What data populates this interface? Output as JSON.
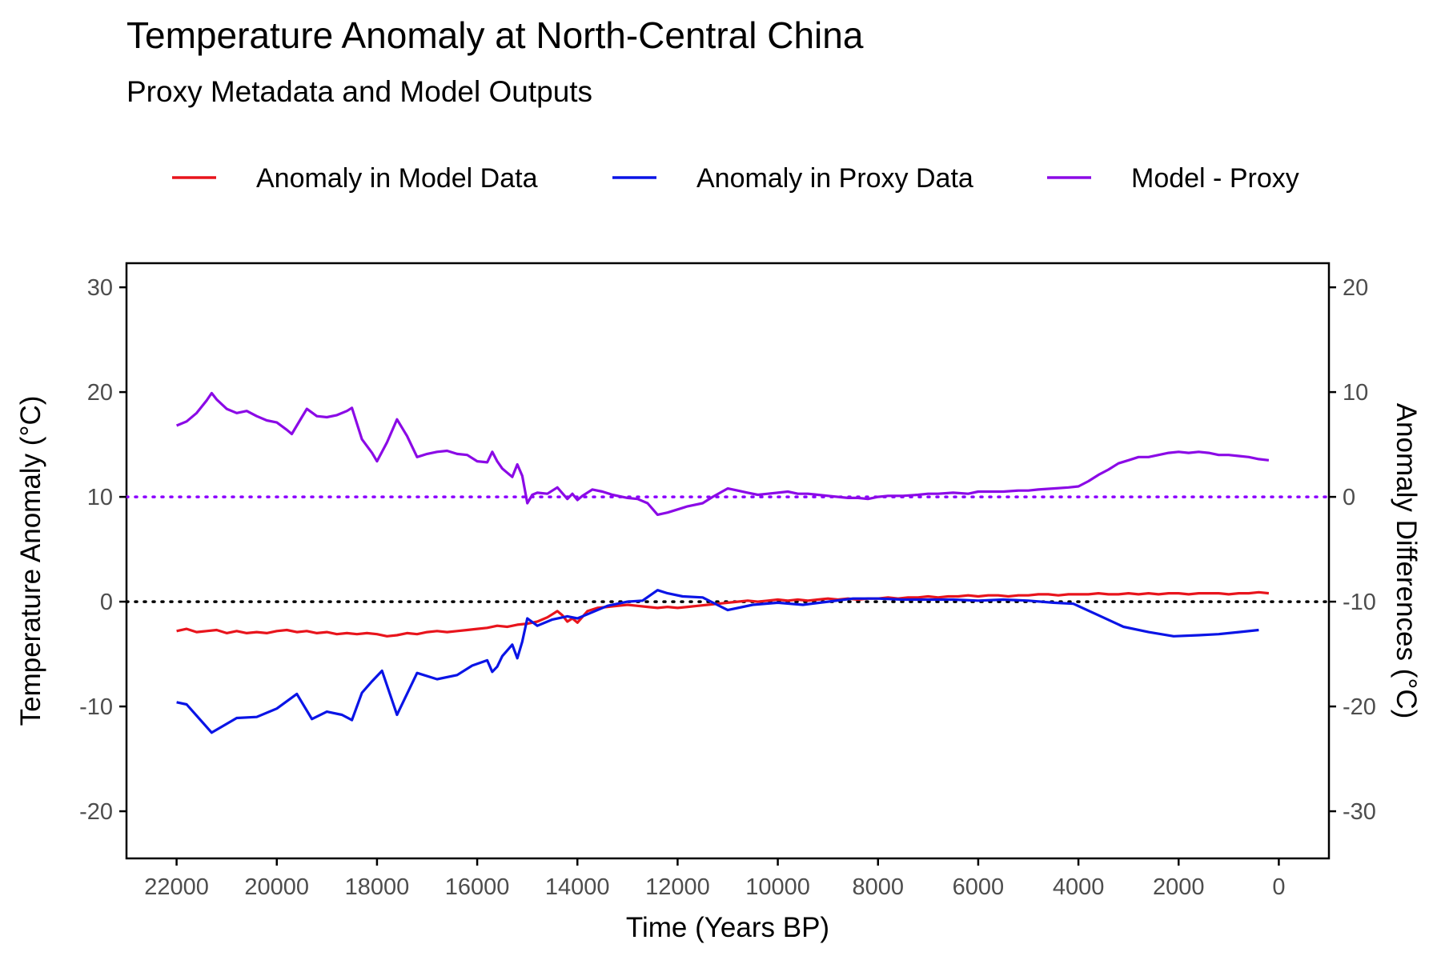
{
  "chart_data": {
    "type": "line",
    "title": "Temperature Anomaly at North-Central China",
    "subtitle": "Proxy Metadata and Model Outputs",
    "xlabel": "Time (Years BP)",
    "ylabel": "Temperature Anomaly (°C)",
    "y2label": "Anomaly Differences (°C)",
    "xlim": [
      23000,
      -1000
    ],
    "ylim": [
      -24.5,
      32.3
    ],
    "y2_offset": -10,
    "x_reversed": true,
    "legend_position": "top",
    "grid": false,
    "x_ticks": [
      22000,
      20000,
      18000,
      16000,
      14000,
      12000,
      10000,
      8000,
      6000,
      4000,
      2000,
      0
    ],
    "x_tick_labels": [
      "22000",
      "20000",
      "18000",
      "16000",
      "14000",
      "12000",
      "10000",
      "8000",
      "6000",
      "4000",
      "2000",
      "0"
    ],
    "y_ticks": [
      -20,
      -10,
      0,
      10,
      20,
      30
    ],
    "y_tick_labels": [
      "-20",
      "-10",
      "0",
      "10",
      "20",
      "30"
    ],
    "y2_ticks": [
      -30,
      -20,
      -10,
      0,
      10,
      20
    ],
    "y2_tick_labels": [
      "-30",
      "-20",
      "-10",
      "0",
      "10",
      "20"
    ],
    "reference_lines": [
      {
        "y2": 0,
        "color": "#8B00FF",
        "style": "dotted"
      },
      {
        "y": 0,
        "color": "#000000",
        "style": "dotted"
      }
    ],
    "series": [
      {
        "name": "Anomaly in Model Data",
        "color": "#E8141C",
        "axis": "left",
        "x": [
          22000,
          21800,
          21600,
          21400,
          21200,
          21000,
          20800,
          20600,
          20400,
          20200,
          20000,
          19800,
          19600,
          19400,
          19200,
          19000,
          18800,
          18600,
          18400,
          18200,
          18000,
          17800,
          17600,
          17400,
          17200,
          17000,
          16800,
          16600,
          16400,
          16200,
          16000,
          15800,
          15600,
          15400,
          15200,
          15000,
          14800,
          14600,
          14500,
          14400,
          14300,
          14200,
          14100,
          14000,
          13800,
          13600,
          13400,
          13200,
          13000,
          12800,
          12600,
          12400,
          12200,
          12000,
          11800,
          11600,
          11400,
          11200,
          11000,
          10800,
          10600,
          10400,
          10200,
          10000,
          9800,
          9600,
          9400,
          9200,
          9000,
          8800,
          8600,
          8400,
          8200,
          8000,
          7800,
          7600,
          7400,
          7200,
          7000,
          6800,
          6600,
          6400,
          6200,
          6000,
          5800,
          5600,
          5400,
          5200,
          5000,
          4800,
          4600,
          4400,
          4200,
          4000,
          3800,
          3600,
          3400,
          3200,
          3000,
          2800,
          2600,
          2400,
          2200,
          2000,
          1800,
          1600,
          1400,
          1200,
          1000,
          800,
          600,
          400,
          200
        ],
        "y": [
          -2.8,
          -2.6,
          -2.9,
          -2.8,
          -2.7,
          -3.0,
          -2.8,
          -3.0,
          -2.9,
          -3.0,
          -2.8,
          -2.7,
          -2.9,
          -2.8,
          -3.0,
          -2.9,
          -3.1,
          -3.0,
          -3.1,
          -3.0,
          -3.1,
          -3.3,
          -3.2,
          -3.0,
          -3.1,
          -2.9,
          -2.8,
          -2.9,
          -2.8,
          -2.7,
          -2.6,
          -2.5,
          -2.3,
          -2.4,
          -2.2,
          -2.1,
          -1.9,
          -1.5,
          -1.2,
          -0.9,
          -1.3,
          -1.9,
          -1.6,
          -2.0,
          -0.9,
          -0.6,
          -0.5,
          -0.4,
          -0.3,
          -0.4,
          -0.5,
          -0.6,
          -0.5,
          -0.6,
          -0.5,
          -0.4,
          -0.3,
          -0.2,
          -0.1,
          0.0,
          0.1,
          0.0,
          0.1,
          0.2,
          0.1,
          0.2,
          0.1,
          0.2,
          0.3,
          0.2,
          0.3,
          0.2,
          0.3,
          0.3,
          0.4,
          0.3,
          0.4,
          0.4,
          0.5,
          0.4,
          0.5,
          0.5,
          0.6,
          0.5,
          0.6,
          0.6,
          0.5,
          0.6,
          0.6,
          0.7,
          0.7,
          0.6,
          0.7,
          0.7,
          0.7,
          0.8,
          0.7,
          0.7,
          0.8,
          0.7,
          0.8,
          0.7,
          0.8,
          0.8,
          0.7,
          0.8,
          0.8,
          0.8,
          0.7,
          0.8,
          0.8,
          0.9,
          0.8
        ]
      },
      {
        "name": "Anomaly in Proxy Data",
        "color": "#0A14E6",
        "axis": "left",
        "x": [
          22000,
          21800,
          21300,
          20800,
          20400,
          20000,
          19600,
          19300,
          19000,
          18700,
          18500,
          18300,
          18100,
          17900,
          17600,
          17200,
          16800,
          16400,
          16100,
          15800,
          15700,
          15600,
          15500,
          15300,
          15200,
          15100,
          15000,
          14800,
          14500,
          14200,
          14000,
          13800,
          13400,
          13000,
          12700,
          12400,
          12200,
          11900,
          11500,
          11000,
          10500,
          10000,
          9500,
          9000,
          8500,
          8000,
          7500,
          7000,
          6500,
          6000,
          5500,
          5000,
          4500,
          4100,
          3600,
          3100,
          2600,
          2100,
          1600,
          1200,
          800,
          400
        ],
        "y": [
          -9.6,
          -9.8,
          -12.5,
          -11.1,
          -11.0,
          -10.2,
          -8.8,
          -11.2,
          -10.5,
          -10.8,
          -11.3,
          -8.7,
          -7.6,
          -6.6,
          -10.8,
          -6.8,
          -7.4,
          -7.0,
          -6.1,
          -5.6,
          -6.7,
          -6.2,
          -5.2,
          -4.1,
          -5.4,
          -3.8,
          -1.6,
          -2.3,
          -1.7,
          -1.4,
          -1.6,
          -1.2,
          -0.4,
          0.0,
          0.1,
          1.1,
          0.8,
          0.5,
          0.4,
          -0.8,
          -0.3,
          -0.1,
          -0.3,
          0.0,
          0.3,
          0.3,
          0.2,
          0.2,
          0.2,
          0.1,
          0.2,
          0.1,
          -0.1,
          -0.2,
          -1.3,
          -2.4,
          -2.9,
          -3.3,
          -3.2,
          -3.1,
          -2.9,
          -2.7
        ]
      },
      {
        "name": "Model - Proxy",
        "color": "#8B0AE6",
        "axis": "right",
        "x": [
          22000,
          21800,
          21600,
          21400,
          21300,
          21200,
          21000,
          20800,
          20600,
          20400,
          20200,
          20000,
          19800,
          19700,
          19500,
          19400,
          19200,
          19000,
          18800,
          18600,
          18500,
          18300,
          18100,
          18000,
          17800,
          17600,
          17400,
          17200,
          17000,
          16800,
          16600,
          16400,
          16200,
          16000,
          15800,
          15700,
          15600,
          15500,
          15300,
          15200,
          15100,
          15000,
          14900,
          14800,
          14600,
          14400,
          14200,
          14100,
          14000,
          13900,
          13700,
          13500,
          13300,
          13000,
          12800,
          12600,
          12400,
          12200,
          12000,
          11800,
          11500,
          11300,
          11000,
          10800,
          10600,
          10400,
          10200,
          10000,
          9800,
          9600,
          9400,
          9200,
          9000,
          8800,
          8600,
          8400,
          8200,
          8000,
          7800,
          7500,
          7200,
          7000,
          6800,
          6500,
          6200,
          6000,
          5800,
          5500,
          5200,
          5000,
          4800,
          4500,
          4200,
          4000,
          3800,
          3600,
          3400,
          3200,
          3000,
          2800,
          2600,
          2400,
          2200,
          2000,
          1800,
          1600,
          1400,
          1200,
          1000,
          800,
          600,
          400,
          200
        ],
        "y": [
          6.8,
          7.2,
          8.0,
          9.2,
          9.9,
          9.3,
          8.4,
          8.0,
          8.2,
          7.7,
          7.3,
          7.1,
          6.4,
          6.0,
          7.6,
          8.4,
          7.7,
          7.6,
          7.8,
          8.2,
          8.5,
          5.5,
          4.2,
          3.4,
          5.2,
          7.4,
          5.8,
          3.8,
          4.1,
          4.3,
          4.4,
          4.1,
          4.0,
          3.4,
          3.3,
          4.3,
          3.4,
          2.7,
          1.9,
          3.1,
          2.0,
          -0.6,
          0.2,
          0.4,
          0.3,
          0.9,
          -0.2,
          0.3,
          -0.3,
          0.1,
          0.7,
          0.5,
          0.2,
          -0.1,
          -0.2,
          -0.6,
          -1.7,
          -1.5,
          -1.2,
          -0.9,
          -0.6,
          0.0,
          0.8,
          0.6,
          0.4,
          0.2,
          0.3,
          0.4,
          0.5,
          0.3,
          0.3,
          0.2,
          0.1,
          0.0,
          -0.1,
          -0.1,
          -0.2,
          0.0,
          0.1,
          0.1,
          0.2,
          0.3,
          0.3,
          0.4,
          0.3,
          0.5,
          0.5,
          0.5,
          0.6,
          0.6,
          0.7,
          0.8,
          0.9,
          1.0,
          1.5,
          2.1,
          2.6,
          3.2,
          3.5,
          3.8,
          3.8,
          4.0,
          4.2,
          4.3,
          4.2,
          4.3,
          4.2,
          4.0,
          4.0,
          3.9,
          3.8,
          3.6,
          3.5
        ]
      }
    ]
  }
}
